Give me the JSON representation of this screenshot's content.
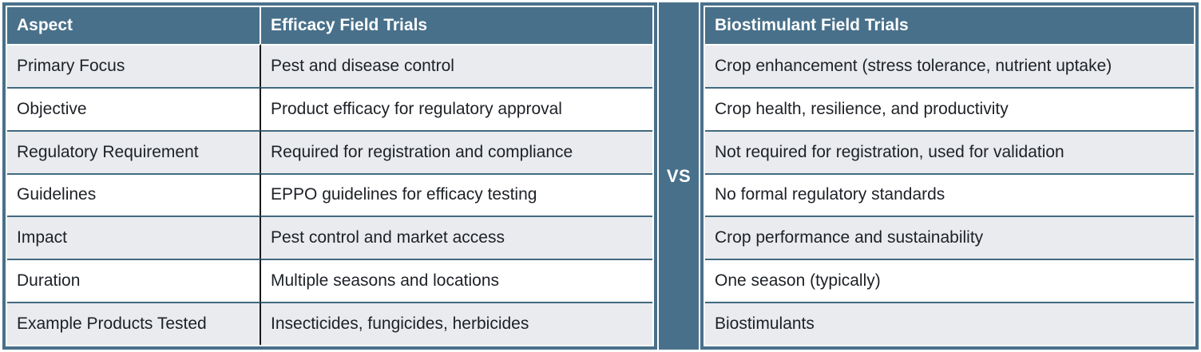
{
  "theme": {
    "header_bg": "#48708a",
    "frame": "#48708a",
    "row_alt": "#e9ebee",
    "row": "#ffffff",
    "row_border": "#416a80",
    "col_border": "#17191b",
    "text": "#1d2126",
    "header_text": "#ffffff"
  },
  "chart_data": {
    "type": "table",
    "title": "Efficacy Field Trials vs Biostimulant Field Trials",
    "divider_label": "VS",
    "columns": [
      "Aspect",
      "Efficacy Field Trials",
      "Biostimulant Field Trials"
    ],
    "rows": [
      [
        "Primary Focus",
        "Pest and disease control",
        "Crop enhancement (stress tolerance, nutrient uptake)"
      ],
      [
        "Objective",
        "Product efficacy for regulatory approval",
        "Crop health, resilience, and productivity"
      ],
      [
        "Regulatory Requirement",
        "Required for registration and compliance",
        "Not required for registration, used for validation"
      ],
      [
        "Guidelines",
        "EPPO guidelines for efficacy testing",
        "No formal regulatory standards"
      ],
      [
        "Impact",
        "Pest control and market access",
        "Crop performance and sustainability"
      ],
      [
        "Duration",
        "Multiple seasons and locations",
        "One season (typically)"
      ],
      [
        "Example Products Tested",
        "Insecticides, fungicides, herbicides",
        "Biostimulants"
      ]
    ]
  }
}
